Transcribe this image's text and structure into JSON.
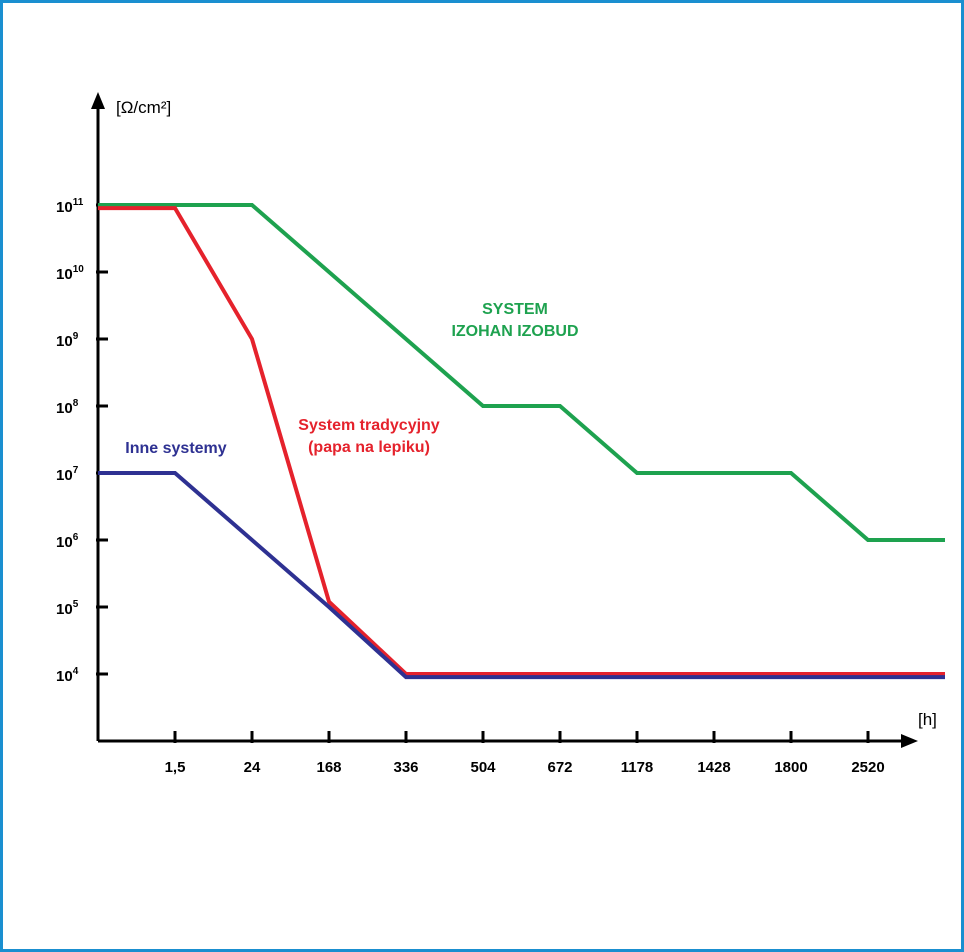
{
  "colors": {
    "frame": "#1a8fd0",
    "axis": "#000000",
    "green": "#1ea24f",
    "red": "#e5222c",
    "blue": "#2e3192"
  },
  "chart_data": {
    "type": "line",
    "title": "",
    "xlabel": "[h]",
    "ylabel": "[Ω/cm²]",
    "y_scale": "log",
    "categories": [
      "",
      "1,5",
      "24",
      "168",
      "336",
      "504",
      "672",
      "1178",
      "1428",
      "1800",
      "2520",
      ""
    ],
    "ytick_exponents": [
      4,
      5,
      6,
      7,
      8,
      9,
      10,
      11
    ],
    "ylim": [
      1000,
      1000000000000.0
    ],
    "series": [
      {
        "name": "SYSTEM IZOHAN IZOBUD",
        "color": "green",
        "values": [
          100000000000.0,
          100000000000.0,
          100000000000.0,
          10000000000.0,
          1000000000.0,
          100000000.0,
          100000000.0,
          10000000.0,
          10000000.0,
          10000000.0,
          1000000.0,
          1000000.0
        ]
      },
      {
        "name": "System tradycyjny (papa na lepiku)",
        "color": "red",
        "values": [
          90000000000.0,
          90000000000.0,
          1000000000.0,
          120000.0,
          10000.0,
          10000.0,
          10000.0,
          10000.0,
          10000.0,
          10000.0,
          10000.0,
          10000.0
        ]
      },
      {
        "name": "Inne systemy",
        "color": "blue",
        "values": [
          10000000.0,
          10000000.0,
          1000000.0,
          100000.0,
          9000.0,
          9000.0,
          9000.0,
          9000.0,
          9000.0,
          9000.0,
          9000.0,
          9000.0
        ]
      }
    ],
    "annotations": [
      {
        "series": 0,
        "lines": [
          "SYSTEM",
          "IZOHAN IZOBUD"
        ]
      },
      {
        "series": 1,
        "lines": [
          "System tradycyjny",
          "(papa na lepiku)"
        ]
      },
      {
        "series": 2,
        "lines": [
          "Inne systemy"
        ]
      }
    ],
    "grid": false,
    "legend": "none"
  }
}
